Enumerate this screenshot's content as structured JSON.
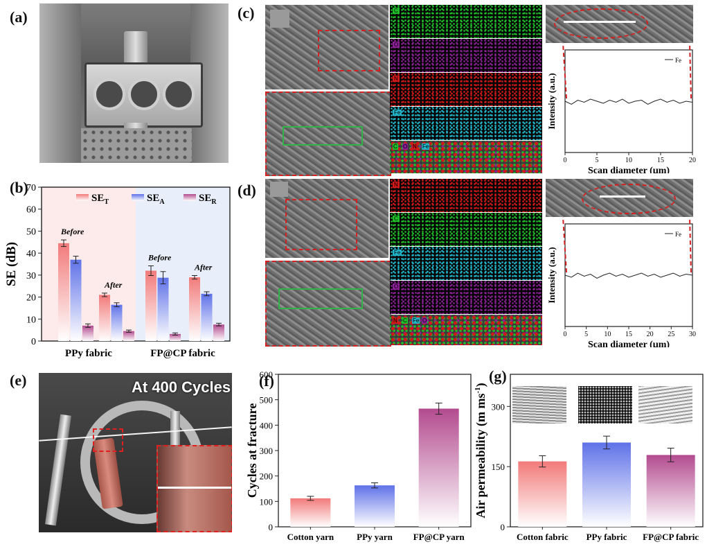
{
  "panels": {
    "a": {
      "label": "(a)"
    },
    "b": {
      "label": "(b)"
    },
    "c": {
      "label": "(c)"
    },
    "d": {
      "label": "(d)"
    },
    "e": {
      "label": "(e)",
      "overlay": "At 400 Cycles"
    },
    "f": {
      "label": "(f)"
    },
    "g": {
      "label": "(g)"
    }
  },
  "colors": {
    "red": "#f27a7a",
    "blue": "#5f72e8",
    "purple": "#b34b8f"
  },
  "chart_data": [
    {
      "id": "b",
      "type": "bar",
      "title": "",
      "xlabel": "",
      "ylabel": "SE (dB)",
      "ylim": [
        0,
        70
      ],
      "yticks": [
        "0",
        "10",
        "20",
        "30",
        "40",
        "50",
        "60",
        "70"
      ],
      "group_labels": [
        "PPy fabric",
        "FP@CP fabric"
      ],
      "categories": [
        "Before",
        "After",
        "Before",
        "After"
      ],
      "legend": [
        "SE",
        "SE",
        "SE"
      ],
      "legend_sub": [
        "T",
        "A",
        "R"
      ],
      "legend_position": "top",
      "series": [
        {
          "name": "SE_T",
          "values": [
            44.5,
            21,
            32,
            29
          ],
          "errors": [
            1.5,
            0.8,
            2.2,
            0.8
          ]
        },
        {
          "name": "SE_A",
          "values": [
            37,
            16.5,
            28.8,
            21.5
          ],
          "errors": [
            1.6,
            0.9,
            2.8,
            0.9
          ]
        },
        {
          "name": "SE_R",
          "values": [
            7,
            4.5,
            3.2,
            7.5
          ],
          "errors": [
            0.8,
            0.5,
            0.5,
            0.6
          ]
        }
      ]
    },
    {
      "id": "c",
      "type": "line",
      "xlabel": "Scan diameter (μm)",
      "ylabel": "Intensity (a.u.)",
      "xlim": [
        0,
        20
      ],
      "xticks": [
        "0",
        "5",
        "10",
        "15",
        "20"
      ],
      "legend": [
        "Fe"
      ],
      "series": [
        {
          "name": "Fe",
          "x": [
            0,
            1,
            2,
            3,
            4,
            5,
            6,
            7,
            8,
            9,
            10,
            11,
            12,
            13,
            14,
            15,
            16,
            17,
            18,
            19,
            20
          ],
          "y": [
            0.5,
            0.47,
            0.51,
            0.49,
            0.52,
            0.5,
            0.48,
            0.51,
            0.49,
            0.52,
            0.48,
            0.5,
            0.51,
            0.47,
            0.5,
            0.52,
            0.49,
            0.51,
            0.48,
            0.5,
            0.49
          ]
        }
      ]
    },
    {
      "id": "d",
      "type": "line",
      "xlabel": "Scan diameter (μm)",
      "ylabel": "Intensity (a.u.)",
      "xlim": [
        0,
        30
      ],
      "xticks": [
        "0",
        "5",
        "10",
        "15",
        "20",
        "25",
        "30"
      ],
      "legend": [
        "Fe"
      ],
      "series": [
        {
          "name": "Fe",
          "x": [
            0,
            1.5,
            3,
            4.5,
            6,
            7.5,
            9,
            10.5,
            12,
            13.5,
            15,
            16.5,
            18,
            19.5,
            21,
            22.5,
            24,
            25.5,
            27,
            28.5,
            30
          ],
          "y": [
            0.5,
            0.48,
            0.52,
            0.49,
            0.51,
            0.47,
            0.5,
            0.52,
            0.49,
            0.51,
            0.48,
            0.5,
            0.52,
            0.49,
            0.51,
            0.48,
            0.5,
            0.52,
            0.49,
            0.51,
            0.5
          ]
        }
      ]
    },
    {
      "id": "f",
      "type": "bar",
      "xlabel": "",
      "ylabel": "Cycles at fracture",
      "ylim": [
        0,
        600
      ],
      "yticks": [
        "0",
        "100",
        "200",
        "300",
        "400",
        "500",
        "600"
      ],
      "categories": [
        "Cotton yarn",
        "PPy yarn",
        "FP@CP yarn"
      ],
      "values": [
        112,
        163,
        465
      ],
      "errors": [
        8,
        10,
        22
      ]
    },
    {
      "id": "g",
      "type": "bar",
      "xlabel": "",
      "ylabel": "Air permeability (m ms",
      "ylabel_sup": "-1",
      "ylabel_close": ")",
      "ylim": [
        0,
        380
      ],
      "yticks": [
        "0",
        "150",
        "300"
      ],
      "categories": [
        "Cotton fabric",
        "PPy fabric",
        "FP@CP fabric"
      ],
      "values": [
        163,
        210,
        179
      ],
      "errors": [
        14,
        16,
        17
      ]
    }
  ],
  "eds_c": [
    {
      "tag": "C",
      "color": "#1fbf2a"
    },
    {
      "tag": "O",
      "color": "#8b1f95"
    },
    {
      "tag": "N",
      "color": "#d21818"
    },
    {
      "tag": "Fe",
      "color": "#22b5c9"
    }
  ],
  "eds_d": [
    {
      "tag": "N",
      "color": "#d21818"
    },
    {
      "tag": "C",
      "color": "#1fbf2a"
    },
    {
      "tag": "Fe",
      "color": "#22b5c9"
    },
    {
      "tag": "O",
      "color": "#8b1f95"
    }
  ]
}
